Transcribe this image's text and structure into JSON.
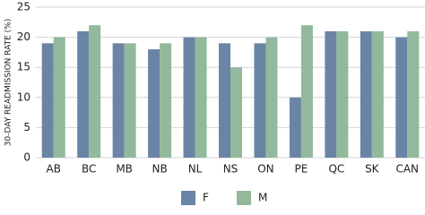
{
  "chart_data": {
    "type": "bar",
    "y_label": "30-DAY READMISSION RATE (%)",
    "categories": [
      "AB",
      "BC",
      "MB",
      "NB",
      "NL",
      "NS",
      "ON",
      "PE",
      "QC",
      "SK",
      "CAN"
    ],
    "series": [
      {
        "name": "F",
        "color": "#6b84a6",
        "values": [
          19,
          21,
          19,
          18,
          20,
          19,
          19,
          10,
          21,
          21,
          20
        ]
      },
      {
        "name": "M",
        "color": "#92b99b",
        "values": [
          20,
          22,
          19,
          19,
          20,
          15,
          20,
          22,
          21,
          21,
          21
        ]
      }
    ],
    "ylim": [
      0,
      25
    ],
    "yticks": [
      0,
      5,
      10,
      15,
      20,
      25
    ],
    "grid": true,
    "legend": "bottom"
  }
}
